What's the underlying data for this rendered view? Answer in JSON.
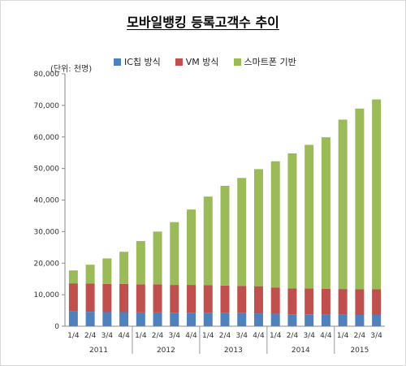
{
  "colors": {
    "ic_chip": "#4f81bd",
    "vm": "#c0504d",
    "smartphone": "#9bbb59"
  },
  "chart_data": {
    "type": "bar",
    "stacked": true,
    "title": "모바일뱅킹 등록고객수 추이",
    "unit_label": "(단위: 천명)",
    "xlabel": "",
    "ylabel": "",
    "ylim": [
      0,
      80000
    ],
    "yticks": [
      "0",
      "10,000",
      "20,000",
      "30,000",
      "40,000",
      "50,000",
      "60,000",
      "70,000",
      "80,000"
    ],
    "grid": false,
    "legend_position": "top",
    "categories": [
      "1/4",
      "2/4",
      "3/4",
      "4/4",
      "1/4",
      "2/4",
      "3/4",
      "4/4",
      "1/4",
      "2/4",
      "3/4",
      "4/4",
      "1/4",
      "2/4",
      "3/4",
      "4/4",
      "1/4",
      "2/4",
      "3/4"
    ],
    "years": [
      {
        "label": "2011",
        "start": 0,
        "end": 3
      },
      {
        "label": "2012",
        "start": 4,
        "end": 7
      },
      {
        "label": "2013",
        "start": 8,
        "end": 11
      },
      {
        "label": "2014",
        "start": 12,
        "end": 15
      },
      {
        "label": "2015",
        "start": 16,
        "end": 18
      }
    ],
    "series": [
      {
        "name": "IC칩 방식",
        "color_key": "ic_chip",
        "values": [
          4800,
          4600,
          4500,
          4500,
          4400,
          4400,
          4300,
          4300,
          4200,
          4200,
          4200,
          4100,
          4000,
          3800,
          3800,
          3700,
          3700,
          3600,
          3600
        ]
      },
      {
        "name": "VM 방식",
        "color_key": "vm",
        "values": [
          8800,
          8900,
          8900,
          8900,
          8900,
          8900,
          8800,
          8800,
          8800,
          8700,
          8600,
          8600,
          8300,
          8200,
          8200,
          8200,
          8100,
          8100,
          8100
        ]
      },
      {
        "name": "스마트폰 기반",
        "color_key": "smartphone",
        "values": [
          4100,
          6000,
          8100,
          10200,
          13700,
          16700,
          19900,
          23900,
          28100,
          31600,
          34200,
          37100,
          40000,
          42800,
          45500,
          48000,
          53700,
          57300,
          60200
        ]
      }
    ]
  }
}
